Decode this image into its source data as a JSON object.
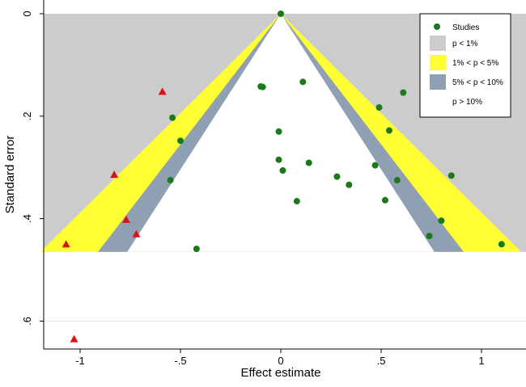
{
  "chart_data": {
    "type": "scatter",
    "xlabel": "Effect estimate",
    "ylabel": "Standard error",
    "xlim": [
      -1.2,
      1.2
    ],
    "ylim": [
      0,
      0.65
    ],
    "y_reversed": true,
    "grid": "horizontal",
    "legend_position": "top-right",
    "x_ticks": [
      {
        "value": -1,
        "label": "-1"
      },
      {
        "value": -0.5,
        "label": "-.5"
      },
      {
        "value": 0,
        "label": "0"
      },
      {
        "value": 0.5,
        "label": ".5"
      },
      {
        "value": 1,
        "label": "1"
      }
    ],
    "y_ticks": [
      {
        "value": 0,
        "label": "0"
      },
      {
        "value": 0.2,
        "label": ".2"
      },
      {
        "value": 0.4,
        "label": ".4"
      },
      {
        "value": 0.6,
        "label": ".6"
      }
    ],
    "contour": {
      "apex": [
        0,
        0
      ],
      "max_se": 0.465,
      "bands": [
        {
          "label": "p < 1%",
          "color": "#cccccc",
          "z": 2.576
        },
        {
          "label": "1% < p < 5%",
          "color": "#ffff33",
          "z": 1.96
        },
        {
          "label": "5% < p < 10%",
          "color": "#8fa0b4",
          "z": 1.645
        },
        {
          "label": "p > 10%",
          "color": "#ffffff"
        }
      ]
    },
    "series": [
      {
        "name": "Studies",
        "marker": "circle",
        "color": "#1a7a1a",
        "points": [
          [
            0.0,
            0.0
          ],
          [
            -0.09,
            0.143
          ],
          [
            -0.1,
            0.142
          ],
          [
            0.11,
            0.133
          ],
          [
            0.61,
            0.154
          ],
          [
            0.49,
            0.183
          ],
          [
            -0.54,
            0.203
          ],
          [
            0.54,
            0.228
          ],
          [
            -0.01,
            0.23
          ],
          [
            -0.5,
            0.248
          ],
          [
            -0.01,
            0.285
          ],
          [
            0.14,
            0.291
          ],
          [
            0.47,
            0.296
          ],
          [
            0.01,
            0.306
          ],
          [
            0.28,
            0.318
          ],
          [
            0.85,
            0.316
          ],
          [
            -0.55,
            0.325
          ],
          [
            0.58,
            0.325
          ],
          [
            0.34,
            0.334
          ],
          [
            0.08,
            0.366
          ],
          [
            0.52,
            0.364
          ],
          [
            0.8,
            0.404
          ],
          [
            0.74,
            0.434
          ],
          [
            1.1,
            0.45
          ],
          [
            -0.42,
            0.459
          ]
        ]
      },
      {
        "marker": "triangle",
        "color": "#dd1111",
        "points": [
          [
            -0.59,
            0.152
          ],
          [
            -0.83,
            0.314
          ],
          [
            -0.77,
            0.402
          ],
          [
            -0.72,
            0.43
          ],
          [
            -1.07,
            0.45
          ],
          [
            -1.03,
            0.635
          ]
        ]
      }
    ]
  }
}
